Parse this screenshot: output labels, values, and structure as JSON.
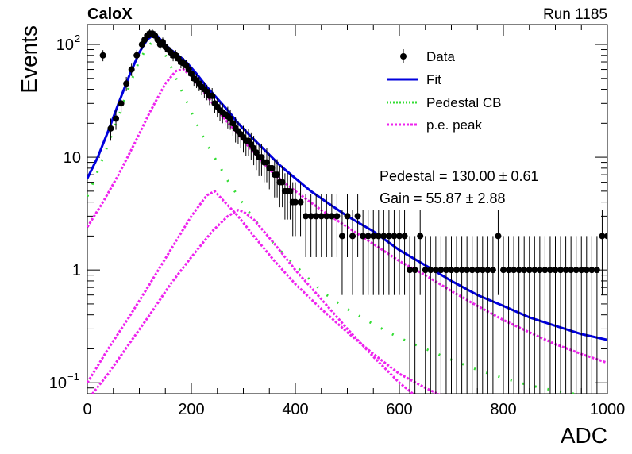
{
  "header": {
    "left_label": "CaloX",
    "right_label": "Run 1185"
  },
  "chart_data": {
    "type": "scatter",
    "xlabel": "ADC",
    "ylabel": "Events",
    "xlim": [
      0,
      1000
    ],
    "ylim": [
      0.08,
      150
    ],
    "y_scale": "log",
    "x_ticks": [
      "0",
      "200",
      "400",
      "600",
      "800",
      "1000"
    ],
    "y_ticks": [
      {
        "value": 100,
        "label": "10",
        "exp": "2"
      },
      {
        "value": 10,
        "label": "10",
        "exp": ""
      },
      {
        "value": 1,
        "label": "1",
        "exp": ""
      },
      {
        "value": 0.1,
        "label": "10",
        "exp": "−1"
      }
    ],
    "legend": {
      "position": "top-right",
      "entries": [
        {
          "label": "Data",
          "style": "marker",
          "color": "#000000"
        },
        {
          "label": "Fit",
          "style": "solid",
          "color": "#0000dd"
        },
        {
          "label": "Pedestal CB",
          "style": "dotted",
          "color": "#33dd33"
        },
        {
          "label": "p.e. peak",
          "style": "dotted",
          "color": "#ee22ee"
        }
      ]
    },
    "annotations": [
      {
        "text": "Pedestal = 130.00 ± 0.61"
      },
      {
        "text": "Gain = 55.87 ± 2.88"
      }
    ],
    "data_points": {
      "x": [
        30,
        45,
        55,
        65,
        75,
        85,
        95,
        105,
        110,
        115,
        120,
        125,
        130,
        135,
        140,
        145,
        150,
        155,
        160,
        165,
        170,
        175,
        180,
        185,
        190,
        195,
        200,
        205,
        210,
        215,
        220,
        225,
        230,
        235,
        240,
        245,
        250,
        255,
        260,
        265,
        270,
        275,
        280,
        285,
        290,
        295,
        300,
        305,
        310,
        315,
        320,
        325,
        330,
        335,
        340,
        345,
        350,
        355,
        360,
        365,
        370,
        375,
        380,
        385,
        390,
        395,
        400,
        410,
        420,
        430,
        440,
        450,
        460,
        470,
        480,
        490,
        500,
        510,
        520,
        530,
        540,
        550,
        560,
        570,
        580,
        590,
        600,
        610,
        620,
        630,
        640,
        650,
        660,
        670,
        680,
        690,
        700,
        710,
        720,
        730,
        740,
        750,
        760,
        770,
        780,
        790,
        800,
        810,
        820,
        830,
        840,
        850,
        860,
        870,
        880,
        890,
        900,
        910,
        920,
        930,
        940,
        950,
        960,
        970,
        980,
        990,
        1000
      ],
      "y": [
        80,
        18,
        22,
        30,
        45,
        60,
        80,
        100,
        110,
        120,
        125,
        125,
        120,
        110,
        100,
        105,
        95,
        90,
        85,
        80,
        80,
        75,
        70,
        68,
        65,
        60,
        55,
        50,
        48,
        45,
        42,
        40,
        38,
        35,
        35,
        30,
        28,
        26,
        25,
        24,
        23,
        22,
        20,
        18,
        17,
        16,
        15,
        14,
        14,
        13,
        12,
        11,
        10,
        10,
        9,
        9,
        8,
        8,
        7,
        7,
        6,
        6,
        5,
        5,
        5,
        4,
        4,
        4,
        3,
        3,
        3,
        3,
        3,
        3,
        3,
        2,
        3,
        2,
        3,
        2,
        2,
        2,
        2,
        2,
        2,
        2,
        2,
        2,
        1,
        1,
        2,
        1,
        1,
        1,
        1,
        1,
        1,
        1,
        1,
        1,
        1,
        1,
        1,
        1,
        1,
        2,
        1,
        1,
        1,
        1,
        1,
        1,
        1,
        1,
        1,
        1,
        1,
        1,
        1,
        1,
        1,
        1,
        1,
        1,
        1,
        2,
        2
      ],
      "errors": [
        9,
        4,
        4.5,
        5.5,
        6.5,
        7.5,
        9,
        10,
        10.5,
        11,
        11,
        11,
        11,
        10.5,
        10,
        10,
        9.5,
        9.5,
        9,
        9,
        9,
        8.5,
        8.5,
        8,
        8,
        7.5,
        7.5,
        7,
        7,
        6.5,
        6.5,
        6.5,
        6,
        6,
        6,
        5.5,
        5.5,
        5,
        5,
        5,
        5,
        4.5,
        4.5,
        4.5,
        4,
        4,
        4,
        3.8,
        3.8,
        3.6,
        3.5,
        3.3,
        3.2,
        3.2,
        3,
        3,
        2.8,
        2.8,
        2.6,
        2.6,
        2.4,
        2.4,
        2.2,
        2.2,
        2.2,
        2,
        2,
        2,
        1.7,
        1.7,
        1.7,
        1.7,
        1.7,
        1.7,
        1.7,
        1.4,
        1.7,
        1.4,
        1.7,
        1.4,
        1.4,
        1.4,
        1.4,
        1.4,
        1.4,
        1.4,
        1.4,
        1.4,
        1,
        1,
        1.4,
        1,
        1,
        1,
        1,
        1,
        1,
        1,
        1,
        1,
        1,
        1,
        1,
        1,
        1,
        1.4,
        1,
        1,
        1,
        1,
        1,
        1,
        1,
        1,
        1,
        1,
        1,
        1,
        1,
        1,
        1,
        1,
        1,
        1,
        1,
        1.4,
        1.4
      ]
    },
    "fit": {
      "x": [
        0,
        20,
        40,
        60,
        80,
        100,
        115,
        130,
        145,
        160,
        175,
        190,
        210,
        230,
        250,
        270,
        290,
        310,
        330,
        350,
        370,
        400,
        430,
        460,
        500,
        550,
        600,
        650,
        700,
        750,
        800,
        850,
        900,
        950,
        1000
      ],
      "y": [
        6.5,
        10,
        17,
        30,
        52,
        85,
        110,
        125,
        105,
        90,
        80,
        70,
        55,
        42,
        33,
        26,
        20,
        16,
        13,
        10.5,
        8.5,
        6.5,
        5,
        4,
        3,
        2.2,
        1.5,
        1.1,
        0.8,
        0.6,
        0.48,
        0.38,
        0.32,
        0.27,
        0.24
      ]
    },
    "pedestal_cb": {
      "x": [
        0,
        20,
        40,
        60,
        80,
        100,
        115,
        130,
        145,
        160,
        175,
        190,
        210,
        230,
        250,
        270,
        290,
        310,
        330,
        350,
        370,
        400,
        430,
        460,
        500,
        550,
        600,
        650,
        700,
        750,
        800,
        850,
        900,
        950,
        1000
      ],
      "y": [
        4.5,
        7.5,
        13,
        23,
        42,
        72,
        95,
        110,
        90,
        65,
        45,
        32,
        20,
        13,
        9,
        6.2,
        4.5,
        3.3,
        2.5,
        1.9,
        1.5,
        1.1,
        0.8,
        0.6,
        0.45,
        0.33,
        0.25,
        0.2,
        0.16,
        0.13,
        0.11,
        0.095,
        0.085,
        0.078,
        0.072
      ]
    },
    "pe_peaks": [
      {
        "x": [
          0,
          30,
          60,
          90,
          120,
          150,
          170,
          185,
          200,
          230,
          260,
          290,
          320,
          360,
          400,
          450,
          500,
          550,
          600,
          650,
          700,
          750,
          800,
          850,
          900,
          950,
          1000
        ],
        "y": [
          2.4,
          4,
          7,
          13,
          25,
          45,
          58,
          60,
          52,
          35,
          23,
          16,
          11,
          7,
          5,
          3.4,
          2.4,
          1.7,
          1.2,
          0.9,
          0.65,
          0.48,
          0.36,
          0.28,
          0.22,
          0.18,
          0.15
        ]
      },
      {
        "x": [
          0,
          40,
          80,
          120,
          160,
          200,
          230,
          245,
          260,
          290,
          320,
          360,
          400,
          450,
          500,
          550,
          600,
          650,
          700,
          750,
          800
        ],
        "y": [
          0.1,
          0.2,
          0.38,
          0.75,
          1.5,
          3,
          4.6,
          5,
          4.2,
          3,
          2,
          1.2,
          0.75,
          0.45,
          0.28,
          0.18,
          0.12,
          0.09,
          0.07,
          0.055,
          0.045
        ]
      },
      {
        "x": [
          0,
          40,
          80,
          120,
          160,
          200,
          240,
          270,
          290,
          300,
          320,
          360,
          400,
          450,
          500,
          550,
          600,
          650,
          700
        ],
        "y": [
          0.07,
          0.12,
          0.22,
          0.4,
          0.75,
          1.3,
          2.2,
          3,
          3.4,
          3.3,
          2.8,
          1.7,
          1,
          0.55,
          0.3,
          0.17,
          0.1,
          0.065,
          0.045
        ]
      }
    ]
  }
}
